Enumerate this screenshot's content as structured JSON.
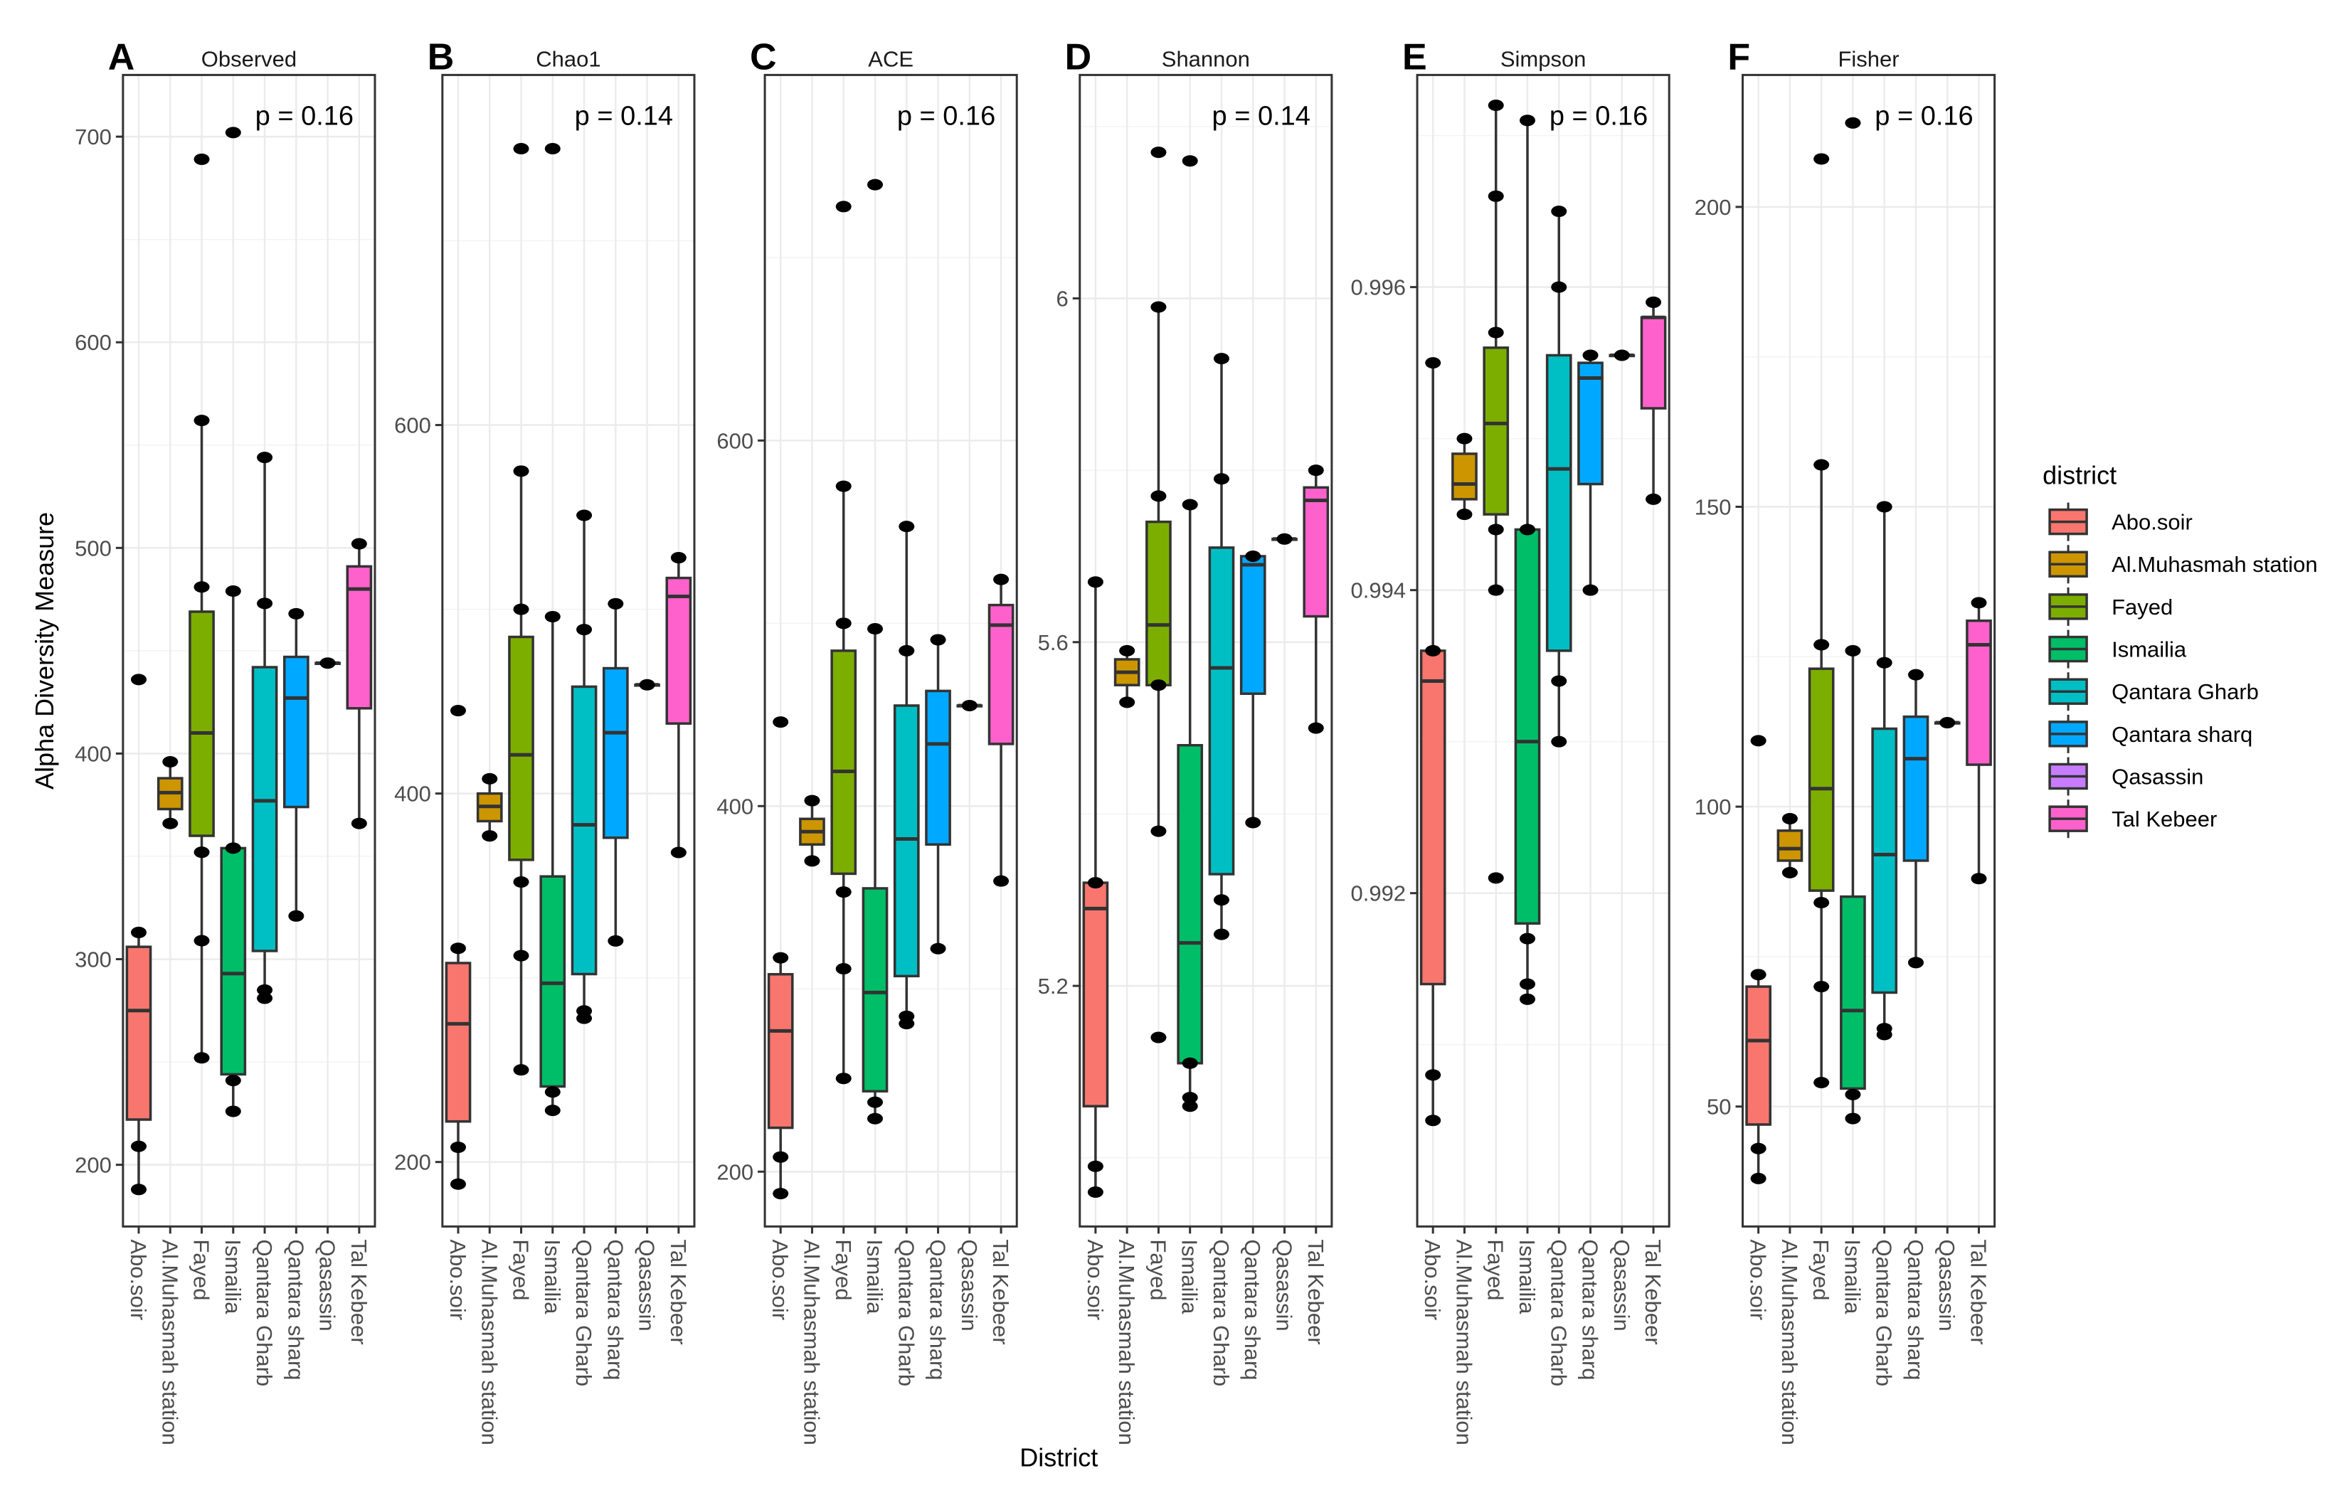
{
  "chart_data": {
    "type": "box",
    "ylabel": "Alpha Diversity Measure",
    "xlabel": "District",
    "categories": [
      "Abo.soir",
      "Al.Muhasmah station",
      "Fayed",
      "Ismailia",
      "Qantara Gharb",
      "Qantara sharq",
      "Qasassin",
      "Tal Kebeer"
    ],
    "colors": [
      "#F8766D",
      "#CD9600",
      "#7CAE00",
      "#00BE67",
      "#00BFC4",
      "#00A9FF",
      "#C77CFF",
      "#FF61CC"
    ],
    "legend": {
      "title": "district",
      "position": "right",
      "labels": [
        "Abo.soir",
        "Al.Muhasmah station",
        "Fayed",
        "Ismailia",
        "Qantara Gharb",
        "Qantara sharq",
        "Qasassin",
        "Tal Kebeer"
      ]
    },
    "grid": true,
    "panels": [
      {
        "tag": "A",
        "title": "Observed",
        "pvalue": "p = 0.16",
        "ylim": [
          170,
          730
        ],
        "yticks": [
          200,
          300,
          400,
          500,
          600,
          700
        ],
        "boxes": [
          {
            "q1": 222,
            "median": 275,
            "q3": 306,
            "whisker_low": 188,
            "whisker_high": 313,
            "points": [
              188,
              209,
              313,
              436
            ]
          },
          {
            "q1": 373,
            "median": 381,
            "q3": 388,
            "whisker_low": 366,
            "whisker_high": 396,
            "points": [
              366,
              396
            ]
          },
          {
            "q1": 360,
            "median": 410,
            "q3": 469,
            "whisker_low": 252,
            "whisker_high": 562,
            "points": [
              252,
              309,
              352,
              481,
              562,
              689
            ]
          },
          {
            "q1": 244,
            "median": 293,
            "q3": 354,
            "whisker_low": 226,
            "whisker_high": 479,
            "points": [
              226,
              241,
              354,
              479,
              702
            ]
          },
          {
            "q1": 304,
            "median": 377,
            "q3": 442,
            "whisker_low": 281,
            "whisker_high": 544,
            "points": [
              281,
              285,
              473,
              544
            ]
          },
          {
            "q1": 374,
            "median": 427,
            "q3": 447,
            "whisker_low": 321,
            "whisker_high": 468,
            "points": [
              321,
              468
            ]
          },
          {
            "q1": 444,
            "median": 444,
            "q3": 444,
            "whisker_low": 444,
            "whisker_high": 444,
            "points": [
              444
            ]
          },
          {
            "q1": 422,
            "median": 480,
            "q3": 491,
            "whisker_low": 366,
            "whisker_high": 502,
            "points": [
              366,
              502
            ]
          }
        ]
      },
      {
        "tag": "B",
        "title": "Chao1",
        "pvalue": "p = 0.14",
        "ylim": [
          165,
          790
        ],
        "yticks": [
          200,
          400,
          600
        ],
        "boxes": [
          {
            "q1": 222,
            "median": 275,
            "q3": 308,
            "whisker_low": 188,
            "whisker_high": 316,
            "points": [
              188,
              208,
              316,
              445
            ]
          },
          {
            "q1": 385,
            "median": 393,
            "q3": 400,
            "whisker_low": 377,
            "whisker_high": 408,
            "points": [
              377,
              408
            ]
          },
          {
            "q1": 364,
            "median": 421,
            "q3": 485,
            "whisker_low": 250,
            "whisker_high": 575,
            "points": [
              250,
              312,
              352,
              500,
              575,
              750
            ]
          },
          {
            "q1": 241,
            "median": 297,
            "q3": 355,
            "whisker_low": 228,
            "whisker_high": 496,
            "points": [
              228,
              238,
              496,
              750
            ]
          },
          {
            "q1": 302,
            "median": 383,
            "q3": 458,
            "whisker_low": 278,
            "whisker_high": 551,
            "points": [
              278,
              282,
              489,
              551
            ]
          },
          {
            "q1": 376,
            "median": 433,
            "q3": 468,
            "whisker_low": 320,
            "whisker_high": 503,
            "points": [
              320,
              503
            ]
          },
          {
            "q1": 459,
            "median": 459,
            "q3": 459,
            "whisker_low": 459,
            "whisker_high": 459,
            "points": [
              459
            ]
          },
          {
            "q1": 438,
            "median": 507,
            "q3": 517,
            "whisker_low": 368,
            "whisker_high": 528,
            "points": [
              368,
              528
            ]
          }
        ]
      },
      {
        "tag": "C",
        "title": "ACE",
        "pvalue": "p = 0.16",
        "ylim": [
          170,
          800
        ],
        "yticks": [
          200,
          400,
          600
        ],
        "boxes": [
          {
            "q1": 224,
            "median": 277,
            "q3": 308,
            "whisker_low": 188,
            "whisker_high": 317,
            "points": [
              188,
              208,
              317,
              446
            ]
          },
          {
            "q1": 379,
            "median": 386,
            "q3": 393,
            "whisker_low": 370,
            "whisker_high": 403,
            "points": [
              370,
              403
            ]
          },
          {
            "q1": 363,
            "median": 419,
            "q3": 485,
            "whisker_low": 251,
            "whisker_high": 575,
            "points": [
              251,
              311,
              353,
              500,
              575,
              728
            ]
          },
          {
            "q1": 244,
            "median": 298,
            "q3": 355,
            "whisker_low": 229,
            "whisker_high": 497,
            "points": [
              229,
              238,
              497,
              740
            ]
          },
          {
            "q1": 307,
            "median": 382,
            "q3": 455,
            "whisker_low": 281,
            "whisker_high": 553,
            "points": [
              281,
              285,
              485,
              553
            ]
          },
          {
            "q1": 379,
            "median": 434,
            "q3": 463,
            "whisker_low": 322,
            "whisker_high": 491,
            "points": [
              322,
              491
            ]
          },
          {
            "q1": 455,
            "median": 455,
            "q3": 455,
            "whisker_low": 455,
            "whisker_high": 455,
            "points": [
              455
            ]
          },
          {
            "q1": 434,
            "median": 499,
            "q3": 510,
            "whisker_low": 359,
            "whisker_high": 524,
            "points": [
              359,
              524
            ]
          }
        ]
      },
      {
        "tag": "D",
        "title": "Shannon",
        "pvalue": "p = 0.14",
        "ylim": [
          4.92,
          6.26
        ],
        "yticks": [
          5.2,
          5.6,
          6.0
        ],
        "boxes": [
          {
            "q1": 5.06,
            "median": 5.29,
            "q3": 5.32,
            "whisker_low": 4.96,
            "whisker_high": 5.67,
            "points": [
              4.96,
              4.99,
              5.32,
              5.67
            ]
          },
          {
            "q1": 5.55,
            "median": 5.565,
            "q3": 5.58,
            "whisker_low": 5.53,
            "whisker_high": 5.59,
            "points": [
              5.53,
              5.59
            ]
          },
          {
            "q1": 5.55,
            "median": 5.62,
            "q3": 5.74,
            "whisker_low": 5.38,
            "whisker_high": 5.99,
            "points": [
              5.14,
              5.38,
              5.55,
              5.77,
              5.99,
              6.17
            ]
          },
          {
            "q1": 5.11,
            "median": 5.25,
            "q3": 5.48,
            "whisker_low": 5.06,
            "whisker_high": 5.76,
            "points": [
              5.06,
              5.07,
              5.11,
              5.76,
              6.16
            ]
          },
          {
            "q1": 5.33,
            "median": 5.57,
            "q3": 5.71,
            "whisker_low": 5.26,
            "whisker_high": 5.93,
            "points": [
              5.26,
              5.3,
              5.79,
              5.93
            ]
          },
          {
            "q1": 5.54,
            "median": 5.69,
            "q3": 5.7,
            "whisker_low": 5.39,
            "whisker_high": 5.7,
            "points": [
              5.39,
              5.7
            ]
          },
          {
            "q1": 5.72,
            "median": 5.72,
            "q3": 5.72,
            "whisker_low": 5.72,
            "whisker_high": 5.72,
            "points": [
              5.72
            ]
          },
          {
            "q1": 5.63,
            "median": 5.765,
            "q3": 5.78,
            "whisker_low": 5.5,
            "whisker_high": 5.8,
            "points": [
              5.5,
              5.8
            ]
          }
        ]
      },
      {
        "tag": "E",
        "title": "Simpson",
        "pvalue": "p = 0.16",
        "ylim": [
          0.9898,
          0.9974
        ],
        "yticks": [
          0.992,
          0.994,
          0.996
        ],
        "boxes": [
          {
            "q1": 0.9914,
            "median": 0.9934,
            "q3": 0.9936,
            "whisker_low": 0.9905,
            "whisker_high": 0.9955,
            "points": [
              0.9905,
              0.9908,
              0.9936,
              0.9955
            ]
          },
          {
            "q1": 0.9946,
            "median": 0.9947,
            "q3": 0.9949,
            "whisker_low": 0.9945,
            "whisker_high": 0.995,
            "points": [
              0.9945,
              0.995
            ]
          },
          {
            "q1": 0.9945,
            "median": 0.9951,
            "q3": 0.9956,
            "whisker_low": 0.994,
            "whisker_high": 0.9972,
            "points": [
              0.9921,
              0.994,
              0.9944,
              0.9957,
              0.9966,
              0.9972
            ]
          },
          {
            "q1": 0.9918,
            "median": 0.993,
            "q3": 0.9944,
            "whisker_low": 0.9913,
            "whisker_high": 0.9971,
            "points": [
              0.9913,
              0.9914,
              0.9917,
              0.9944,
              0.9971
            ]
          },
          {
            "q1": 0.9936,
            "median": 0.9948,
            "q3": 0.99555,
            "whisker_low": 0.993,
            "whisker_high": 0.9965,
            "points": [
              0.993,
              0.9934,
              0.996,
              0.9965
            ]
          },
          {
            "q1": 0.9947,
            "median": 0.9954,
            "q3": 0.9955,
            "whisker_low": 0.994,
            "whisker_high": 0.99555,
            "points": [
              0.994,
              0.99555
            ]
          },
          {
            "q1": 0.99555,
            "median": 0.99555,
            "q3": 0.99555,
            "whisker_low": 0.99555,
            "whisker_high": 0.99555,
            "points": [
              0.99555
            ]
          },
          {
            "q1": 0.9952,
            "median": 0.9958,
            "q3": 0.9958,
            "whisker_low": 0.9946,
            "whisker_high": 0.9959,
            "points": [
              0.9946,
              0.9959
            ]
          }
        ]
      },
      {
        "tag": "F",
        "title": "Fisher",
        "pvalue": "p = 0.16",
        "ylim": [
          30,
          222
        ],
        "yticks": [
          50,
          100,
          150,
          200
        ],
        "boxes": [
          {
            "q1": 47,
            "median": 61,
            "q3": 70,
            "whisker_low": 38,
            "whisker_high": 72,
            "points": [
              38,
              43,
              72,
              111
            ]
          },
          {
            "q1": 91,
            "median": 93,
            "q3": 96,
            "whisker_low": 89,
            "whisker_high": 98,
            "points": [
              89,
              98
            ]
          },
          {
            "q1": 86,
            "median": 103,
            "q3": 123,
            "whisker_low": 54,
            "whisker_high": 157,
            "points": [
              54,
              70,
              84,
              127,
              157,
              208
            ]
          },
          {
            "q1": 53,
            "median": 66,
            "q3": 85,
            "whisker_low": 48,
            "whisker_high": 126,
            "points": [
              48,
              52,
              126,
              214
            ]
          },
          {
            "q1": 69,
            "median": 92,
            "q3": 113,
            "whisker_low": 62,
            "whisker_high": 150,
            "points": [
              62,
              63,
              124,
              150
            ]
          },
          {
            "q1": 91,
            "median": 108,
            "q3": 115,
            "whisker_low": 74,
            "whisker_high": 122,
            "points": [
              74,
              122
            ]
          },
          {
            "q1": 114,
            "median": 114,
            "q3": 114,
            "whisker_low": 114,
            "whisker_high": 114,
            "points": [
              114
            ]
          },
          {
            "q1": 107,
            "median": 127,
            "q3": 131,
            "whisker_low": 88,
            "whisker_high": 134,
            "points": [
              88,
              134
            ]
          }
        ]
      }
    ]
  }
}
